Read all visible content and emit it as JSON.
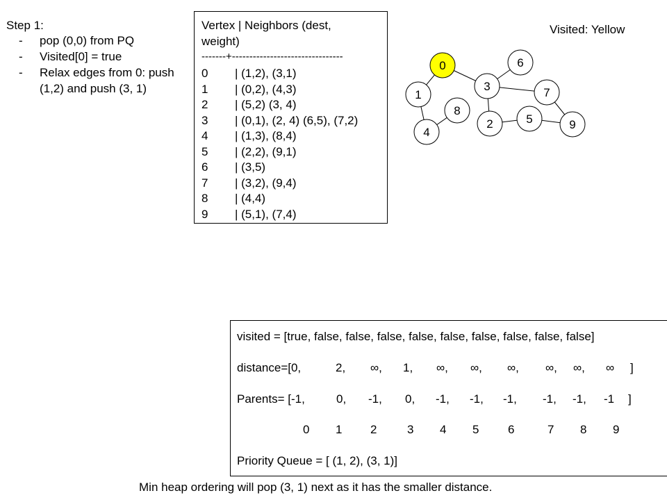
{
  "step": {
    "title": "Step 1:",
    "bullets": [
      {
        "marker": "-",
        "lines": [
          "pop (0,0) from PQ"
        ]
      },
      {
        "marker": "-",
        "lines": [
          "Visited[0] = true"
        ]
      },
      {
        "marker": "-",
        "lines": [
          "Relax edges from 0: push",
          "(1,2) and push (3, 1)"
        ]
      }
    ]
  },
  "adjacency": {
    "header_line1": "Vertex | Neighbors (dest,",
    "header_line2": "weight)",
    "separator": "-------+--------------------------------",
    "rows": [
      {
        "v": "0",
        "n": "| (1,2), (3,1)"
      },
      {
        "v": "1",
        "n": "| (0,2), (4,3)"
      },
      {
        "v": "2",
        "n": "| (5,2)  (3, 4)"
      },
      {
        "v": "3",
        "n": "| (0,1), (2, 4) (6,5), (7,2)"
      },
      {
        "v": "4",
        "n": "| (1,3), (8,4)"
      },
      {
        "v": "5",
        "n": "| (2,2), (9,1)"
      },
      {
        "v": "6",
        "n": "| (3,5)"
      },
      {
        "v": "7",
        "n": "| (3,2), (9,4)"
      },
      {
        "v": "8",
        "n": "| (4,4)"
      },
      {
        "v": "9",
        "n": "| (5,1), (7,4)"
      }
    ]
  },
  "graph": {
    "legend": "Visited: Yellow",
    "visited_color": "#ffff00",
    "default_color": "#ffffff",
    "nodes": [
      {
        "id": "0",
        "visited": true
      },
      {
        "id": "1",
        "visited": false
      },
      {
        "id": "2",
        "visited": false
      },
      {
        "id": "3",
        "visited": false
      },
      {
        "id": "4",
        "visited": false
      },
      {
        "id": "5",
        "visited": false
      },
      {
        "id": "6",
        "visited": false
      },
      {
        "id": "7",
        "visited": false
      },
      {
        "id": "8",
        "visited": false
      },
      {
        "id": "9",
        "visited": false
      }
    ],
    "edges": [
      [
        "0",
        "1"
      ],
      [
        "0",
        "3"
      ],
      [
        "1",
        "4"
      ],
      [
        "4",
        "8"
      ],
      [
        "3",
        "6"
      ],
      [
        "3",
        "7"
      ],
      [
        "3",
        "2"
      ],
      [
        "2",
        "5"
      ],
      [
        "5",
        "9"
      ],
      [
        "7",
        "9"
      ]
    ]
  },
  "state": {
    "visited_line": "visited = [true, false, false, false, false, false, false, false, false, false]",
    "distance_label": "distance=[0,",
    "distance_values": [
      "2,",
      "∞,",
      "1,",
      "∞,",
      "∞,",
      "∞,",
      "∞,",
      "∞,",
      "∞"
    ],
    "distance_close": "]",
    "parents_label": "Parents= [-1,",
    "parents_values": [
      "0,",
      "-1,",
      "0,",
      "-1,",
      "-1,",
      "-1,",
      "-1,",
      "-1,",
      "-1"
    ],
    "parents_close": "]",
    "indices": [
      "0",
      "1",
      "2",
      "3",
      "4",
      "5",
      "6",
      "7",
      "8",
      "9"
    ],
    "pq_line": "Priority Queue = [ (1, 2), (3, 1)]"
  },
  "footer": "Min heap ordering will pop (3, 1) next as it has the smaller distance."
}
